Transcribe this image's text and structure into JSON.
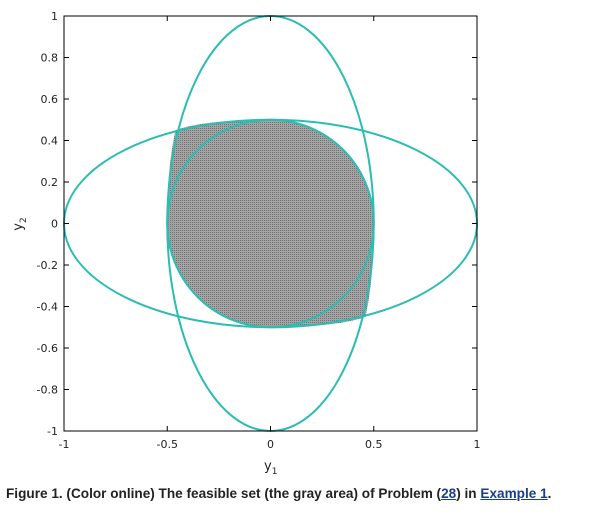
{
  "chart_data": {
    "type": "area",
    "xlabel": "y",
    "xlabel_subscript": "1",
    "ylabel": "y",
    "ylabel_subscript": "2",
    "xlim": [
      -1,
      1
    ],
    "ylim": [
      -1,
      1
    ],
    "xticks": [
      -1,
      -0.5,
      0,
      0.5,
      1
    ],
    "xtick_labels": [
      "-1",
      "-0.5",
      "0",
      "0.5",
      "1"
    ],
    "yticks": [
      -1,
      -0.8,
      -0.6,
      -0.4,
      -0.2,
      0,
      0.2,
      0.4,
      0.6,
      0.8,
      1
    ],
    "ytick_labels": [
      "-1",
      "-0.8",
      "-0.6",
      "-0.4",
      "-0.2",
      "0",
      "0.2",
      "0.4",
      "0.6",
      "0.8",
      "1"
    ],
    "grid": false,
    "curve_color": "#2bbcb4",
    "fill_color": "#9a9a9a",
    "ellipses": [
      {
        "cx": 0,
        "cy": 0,
        "rx": 0.5,
        "ry": 0.5
      },
      {
        "cx": 0,
        "cy": 0,
        "rx": 0.5,
        "ry": 1.0
      },
      {
        "cx": 0,
        "cy": 0,
        "rx": 1.0,
        "ry": 0.5
      }
    ],
    "feasible_region": {
      "description": "gray area",
      "x_range": [
        -0.5,
        0.5
      ],
      "y_range": [
        -0.5,
        0.5
      ],
      "corner_bulge": [
        {
          "corner": "top-left",
          "point": [
            -0.46,
            0.45
          ]
        },
        {
          "corner": "bottom-right",
          "point": [
            0.46,
            -0.45
          ]
        }
      ]
    }
  },
  "caption": {
    "prefix": "Figure 1. (Color online) The feasible set (the gray area) of Problem (",
    "link1": "28",
    "middle": ") in ",
    "link2": "Example 1",
    "suffix": "."
  }
}
